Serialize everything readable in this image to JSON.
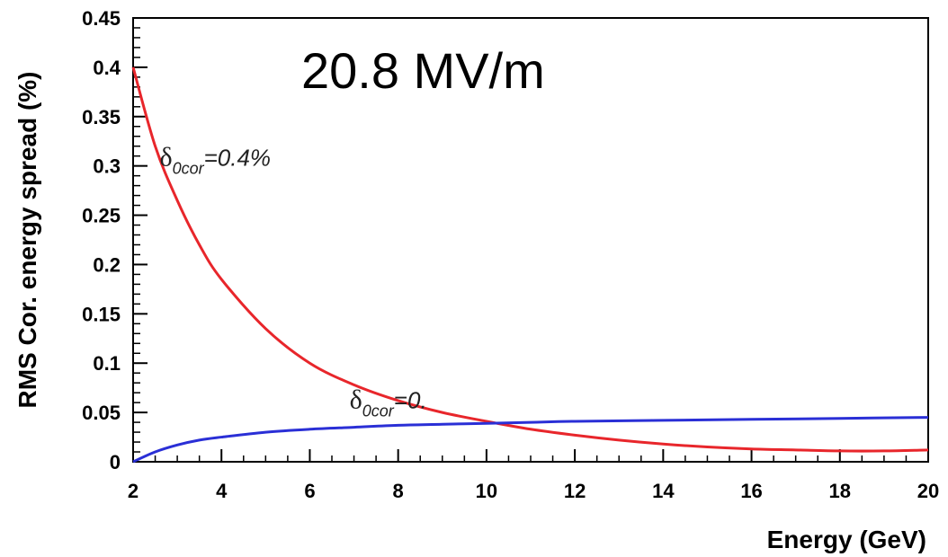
{
  "chart_data": {
    "type": "line",
    "title": "20.8 MV/m",
    "xlabel": "Energy (GeV)",
    "ylabel": "RMS Cor. energy spread (%)",
    "xlim": [
      2,
      20
    ],
    "ylim": [
      0,
      0.45
    ],
    "x_ticks": [
      "2",
      "4",
      "6",
      "8",
      "10",
      "12",
      "14",
      "16",
      "18",
      "20"
    ],
    "y_ticks": [
      "0",
      "0.05",
      "0.1",
      "0.15",
      "0.2",
      "0.25",
      "0.3",
      "0.35",
      "0.4",
      "0.45"
    ],
    "grid": false,
    "series": [
      {
        "color": "#e8262b",
        "x": [
          2,
          2.5,
          3,
          3.5,
          4,
          5,
          6,
          7,
          8,
          9,
          10,
          11,
          12,
          13,
          14,
          15,
          16,
          17,
          18,
          19,
          20
        ],
        "y": [
          0.4,
          0.32,
          0.265,
          0.22,
          0.185,
          0.135,
          0.1,
          0.078,
          0.062,
          0.05,
          0.041,
          0.033,
          0.027,
          0.022,
          0.018,
          0.015,
          0.013,
          0.012,
          0.011,
          0.011,
          0.012
        ]
      },
      {
        "color": "#2a2fd6",
        "x": [
          2,
          2.5,
          3,
          3.5,
          4,
          5,
          6,
          7,
          8,
          9,
          10,
          11,
          12,
          14,
          16,
          18,
          20
        ],
        "y": [
          0,
          0.01,
          0.017,
          0.022,
          0.025,
          0.03,
          0.033,
          0.035,
          0.037,
          0.038,
          0.039,
          0.04,
          0.041,
          0.042,
          0.043,
          0.044,
          0.045
        ]
      }
    ],
    "annotations": [
      {
        "symbol": "δ",
        "subscript": "0cor",
        "text": "=0.4%",
        "x": 2.6,
        "y": 0.3
      },
      {
        "symbol": "δ",
        "subscript": "0cor",
        "text": "=0.",
        "x": 6.9,
        "y": 0.054
      }
    ]
  }
}
